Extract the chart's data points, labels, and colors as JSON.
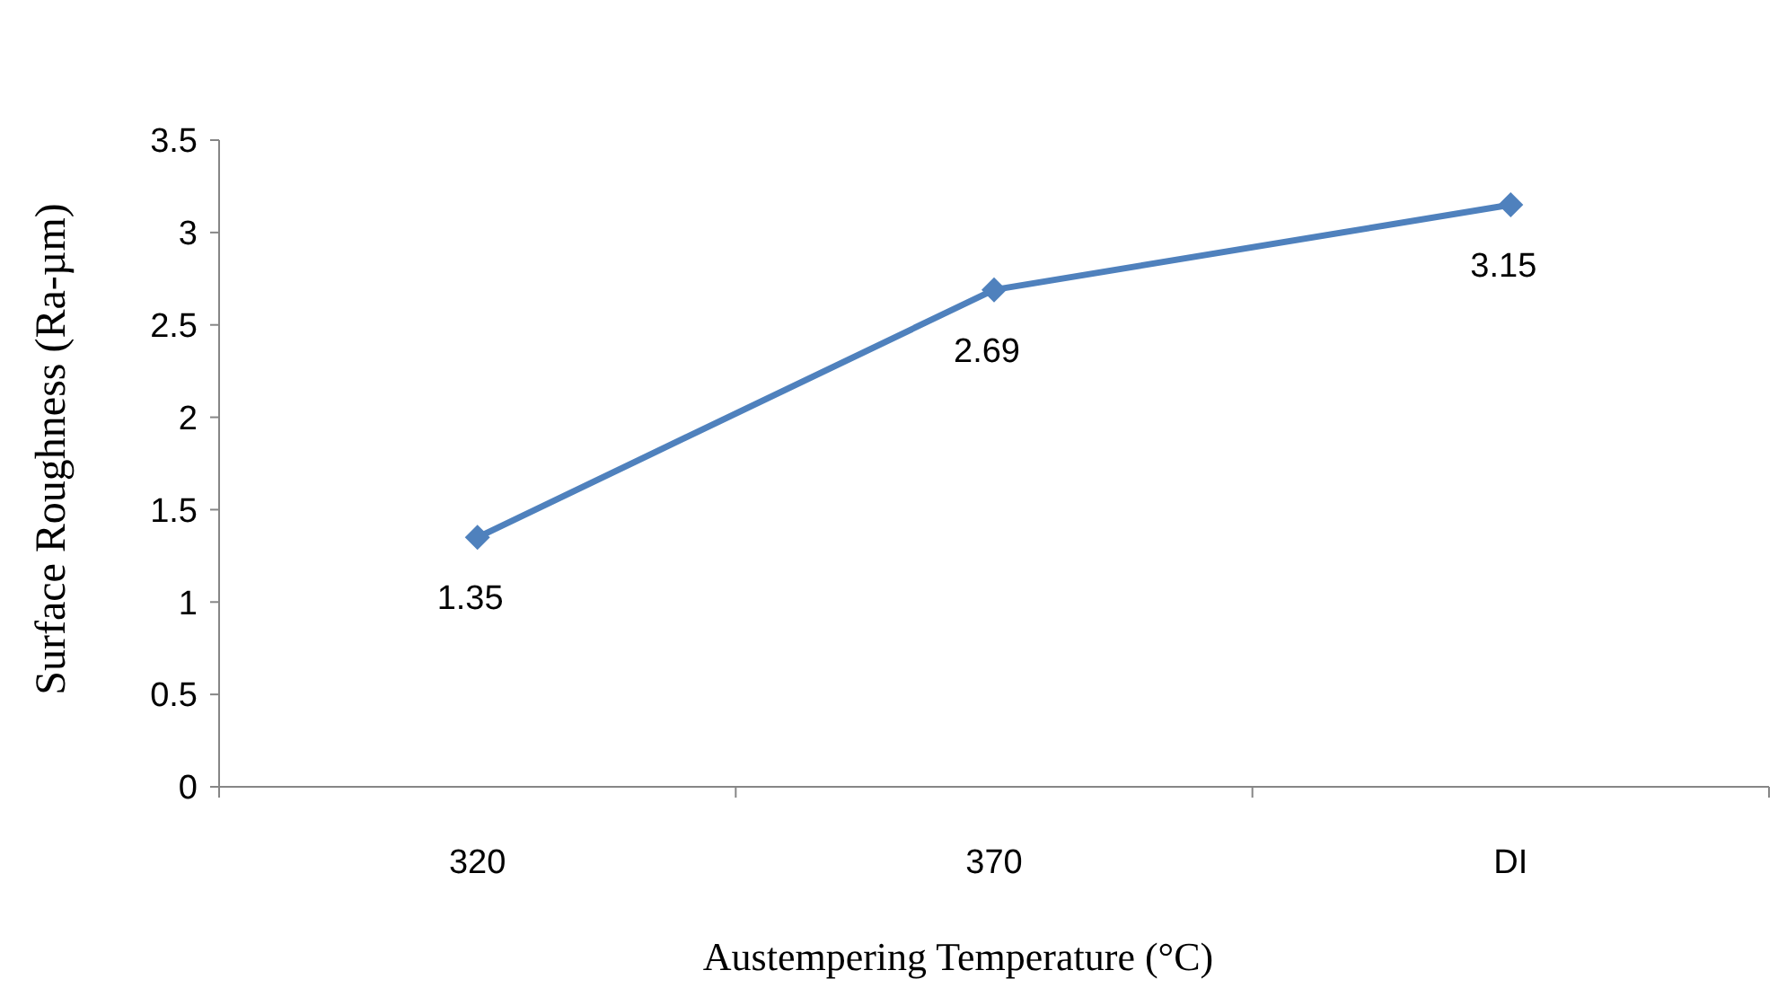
{
  "chart_data": {
    "type": "line",
    "xlabel": "Austempering Temperature (°C)",
    "ylabel": "Surface Roughness (Ra-µm)",
    "categories": [
      "320",
      "370",
      "DI"
    ],
    "series": [
      {
        "color": "#4f81bd",
        "values": [
          1.35,
          2.69,
          3.15
        ]
      }
    ],
    "ylim": [
      0,
      3.5
    ],
    "yticks": [
      0,
      0.5,
      1,
      1.5,
      2,
      2.5,
      3,
      3.5
    ],
    "grid": false,
    "marker": "diamond",
    "line_style": "solid",
    "data_labels": true
  }
}
